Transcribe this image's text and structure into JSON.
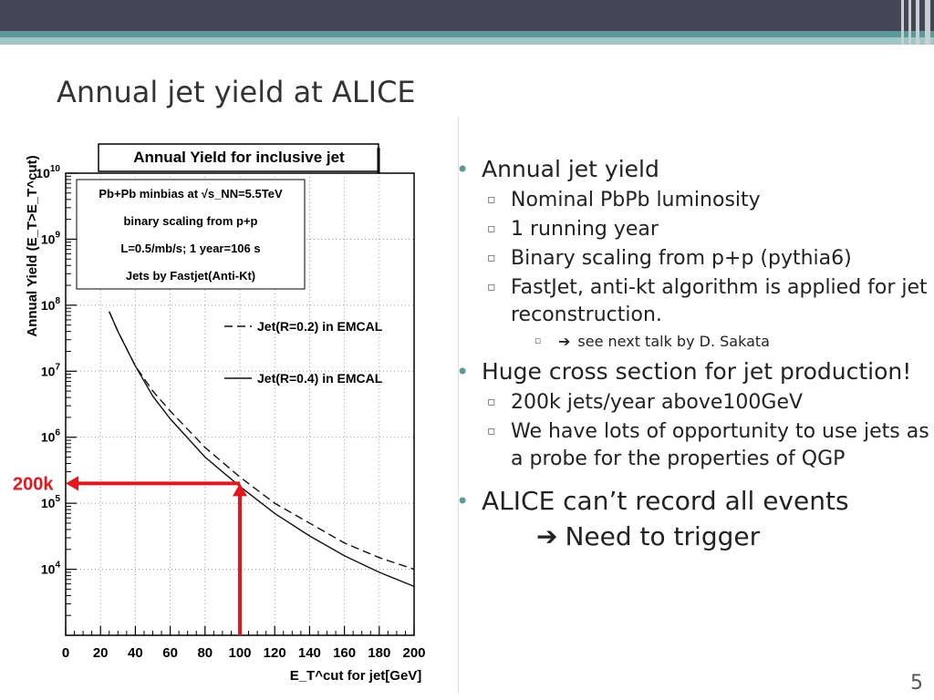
{
  "slide": {
    "title": "Annual jet yield at ALICE",
    "page_number": "5"
  },
  "bullets": {
    "b1": "Annual jet yield",
    "b1_sub": [
      "Nominal PbPb luminosity",
      "1 running year",
      "Binary scaling from p+p (pythia6)",
      "FastJet, anti-kt algorithm is applied for jet reconstruction."
    ],
    "b1_subsub": "see next talk by D. Sakata",
    "b1_subsub_arrow": "➔",
    "b2": "Huge cross section for jet production!",
    "b2_sub": [
      "200k jets/year above100GeV",
      "We have lots of opportunity to use jets as a probe for the properties of QGP"
    ],
    "b3": "ALICE can’t record all events",
    "b3_cont": "Need to trigger",
    "b3_arrow": "➔"
  },
  "chart_data": {
    "type": "line",
    "title": "Annual Yield for inclusive jet",
    "xlabel": "E_T^cut for jet[GeV]",
    "ylabel": "Annual Yield (E_T>E_T^cut)",
    "xlim": [
      0,
      200
    ],
    "ylim": [
      1000,
      10000000000
    ],
    "yscale": "log",
    "x_ticks": [
      0,
      20,
      40,
      60,
      80,
      100,
      120,
      140,
      160,
      180,
      200
    ],
    "y_ticks": [
      10000,
      100000,
      1000000,
      10000000,
      100000000,
      1000000000,
      10000000000
    ],
    "y_tick_labels": [
      "10^4",
      "10^5",
      "10^6",
      "10^7",
      "10^8",
      "10^9",
      "10^10"
    ],
    "info_lines": [
      "Pb+Pb minbias at √s_NN=5.5TeV",
      "binary scaling from p+p",
      "L=0.5/mb/s; 1 year=10^6 s",
      "Jets by Fastjet(Anti-Kt)"
    ],
    "series": [
      {
        "name": "Jet(R=0.2) in EMCAL",
        "style": "dashed",
        "x": [
          25,
          30,
          40,
          50,
          60,
          80,
          100,
          120,
          140,
          160,
          180,
          200
        ],
        "y": [
          80000000,
          40000000,
          12000000,
          5000000,
          2500000,
          700000,
          250000,
          100000,
          50000,
          25000,
          15000,
          10000
        ]
      },
      {
        "name": "Jet(R=0.4) in EMCAL",
        "style": "solid",
        "x": [
          25,
          30,
          40,
          50,
          60,
          80,
          100,
          120,
          140,
          160,
          180,
          200
        ],
        "y": [
          80000000,
          40000000,
          12000000,
          4200000,
          1900000,
          500000,
          180000,
          70000,
          32000,
          16000,
          9000,
          5500
        ]
      }
    ],
    "annotation": {
      "label": "200k",
      "x": 100,
      "y": 200000,
      "color": "#e8161c"
    }
  }
}
